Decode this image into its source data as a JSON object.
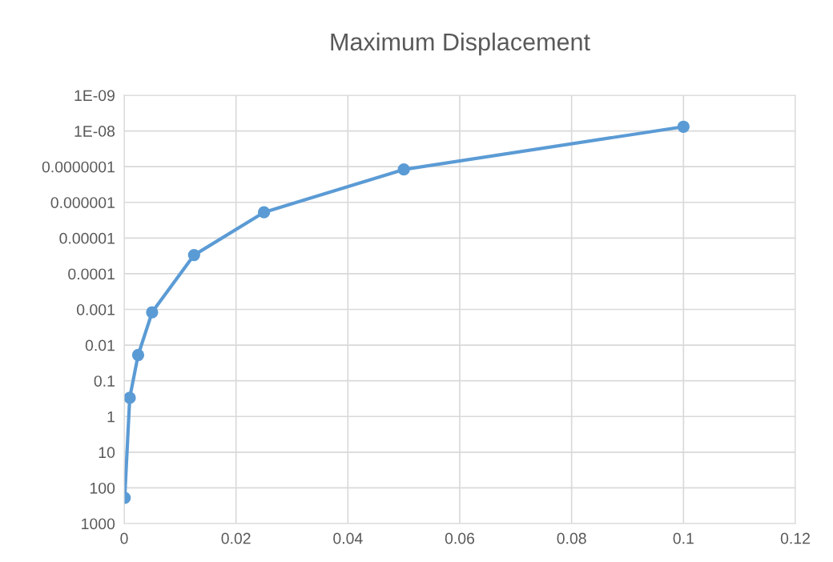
{
  "chart_data": {
    "type": "line",
    "title": "Maximum Displacement",
    "x": [
      0.0001,
      0.001,
      0.0025,
      0.005,
      0.0125,
      0.025,
      0.05,
      0.1
    ],
    "series": [
      {
        "color": "#5b9bd5",
        "values": [
          190,
          0.3,
          0.019,
          0.0012,
          3e-05,
          1.9e-06,
          1.2e-07,
          7.6e-09
        ]
      }
    ],
    "log": "y",
    "ylim": [
      1000,
      1e-09
    ],
    "yticks": [
      1000,
      100,
      10,
      1,
      0.1,
      0.01,
      0.001,
      0.0001,
      {
        "value": 1e-05,
        "label": "0.00001"
      },
      {
        "value": 1e-06,
        "label": "0.000001"
      },
      {
        "value": 1e-07,
        "label": "0.0000001"
      },
      {
        "value": 1e-08,
        "label": "1E-08"
      },
      {
        "value": 1e-09,
        "label": "1E-09"
      }
    ],
    "xlim": [
      0,
      0.12
    ],
    "xticks": [
      0,
      0.02,
      0.04,
      0.06,
      0.08,
      0.1,
      0.12
    ],
    "grid": true,
    "marker": "circle",
    "line_style": "solid"
  }
}
